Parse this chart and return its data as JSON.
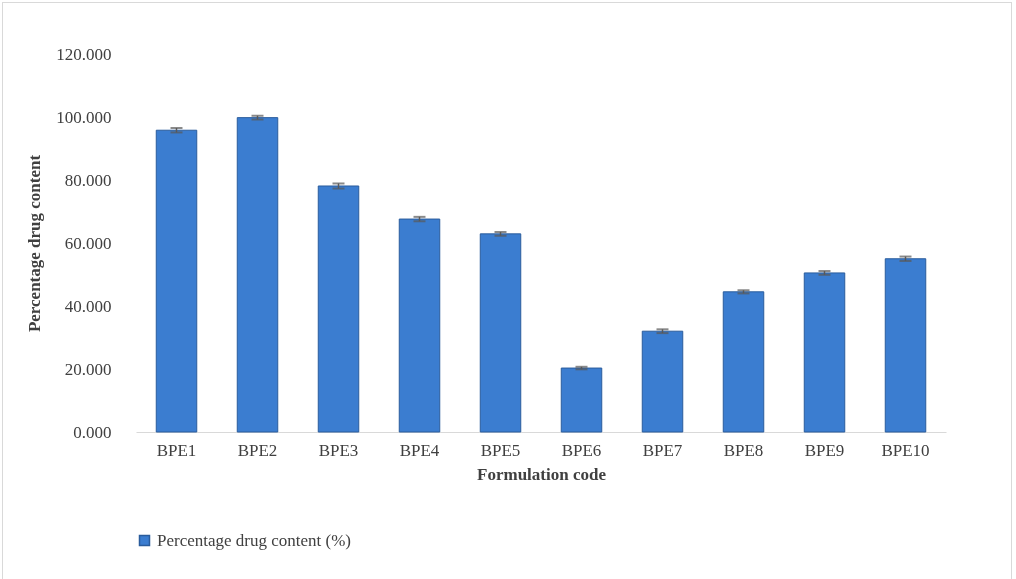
{
  "chart_data": {
    "type": "bar",
    "xlabel": "Formulation code",
    "ylabel": "Percentage drug content",
    "categories": [
      "BPE1",
      "BPE2",
      "BPE3",
      "BPE4",
      "BPE5",
      "BPE6",
      "BPE7",
      "BPE8",
      "BPE9",
      "BPE10"
    ],
    "series": [
      {
        "name": "Percentage drug content (%)",
        "color": "#3b7dd0",
        "values": [
          95.8,
          99.8,
          78.1,
          67.6,
          62.9,
          20.3,
          32.0,
          44.5,
          50.5,
          55.0
        ],
        "errors": [
          0.7,
          0.6,
          0.8,
          0.7,
          0.6,
          0.4,
          0.6,
          0.5,
          0.6,
          0.7
        ]
      }
    ],
    "ylim": [
      0,
      120
    ],
    "yticks": [
      {
        "value": 0,
        "label": "0.000"
      },
      {
        "value": 20,
        "label": "20.000"
      },
      {
        "value": 40,
        "label": "40.000"
      },
      {
        "value": 60,
        "label": "60.000"
      },
      {
        "value": 80,
        "label": "80.000"
      },
      {
        "value": 100,
        "label": "100.000"
      },
      {
        "value": 120,
        "label": "120.000"
      }
    ],
    "grid": false,
    "legend": "bottom"
  }
}
